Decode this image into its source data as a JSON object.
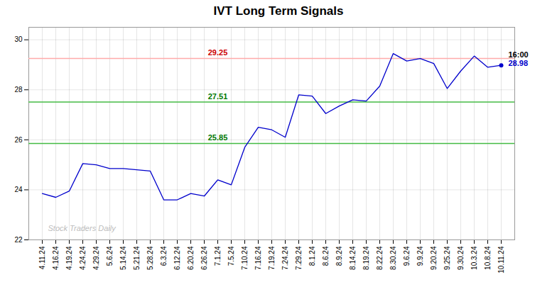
{
  "chart_data": {
    "type": "line",
    "title": "IVT Long Term Signals",
    "categories": [
      "4.11.24",
      "4.16.24",
      "4.19.24",
      "4.24.24",
      "4.29.24",
      "5.6.24",
      "5.14.24",
      "5.21.24",
      "5.28.24",
      "6.3.24",
      "6.12.24",
      "6.20.24",
      "6.26.24",
      "7.1.24",
      "7.5.24",
      "7.10.24",
      "7.16.24",
      "7.19.24",
      "7.24.24",
      "7.29.24",
      "8.1.24",
      "8.6.24",
      "8.9.24",
      "8.14.24",
      "8.19.24",
      "8.22.24",
      "8.30.24",
      "9.6.24",
      "9.9.24",
      "9.20.24",
      "9.25.24",
      "9.30.24",
      "10.3.24",
      "10.8.24",
      "10.11.24"
    ],
    "values": [
      23.85,
      23.7,
      23.95,
      25.05,
      25.0,
      24.85,
      24.85,
      24.8,
      24.75,
      23.6,
      23.6,
      23.85,
      23.75,
      24.4,
      24.2,
      25.7,
      26.5,
      26.4,
      26.1,
      27.8,
      27.75,
      27.05,
      27.35,
      27.6,
      27.55,
      28.15,
      29.45,
      29.15,
      29.25,
      29.05,
      28.05,
      28.75,
      29.35,
      28.9,
      28.98
    ],
    "color": "#0000cc",
    "ylim": [
      22,
      30.5
    ],
    "yticks": [
      22,
      24,
      26,
      28,
      30
    ],
    "grid": true,
    "hlines": [
      {
        "value": 29.25,
        "color": "#ffaaaa",
        "label": "29.25",
        "label_color": "#cc0000",
        "x": "7.1.24"
      },
      {
        "value": 25.85,
        "color": "#44bb44",
        "label": "25.85",
        "label_color": "#007700",
        "x": "7.1.24"
      },
      {
        "value": 27.51,
        "color": "#44bb44",
        "label": "27.51",
        "label_color": "#007700",
        "x": "7.1.24"
      }
    ],
    "annotations": [
      {
        "text": "16:00",
        "x": "10.11.24",
        "y": 28.98,
        "color": "#000000"
      },
      {
        "text": "28.98",
        "x": "10.11.24",
        "y": 28.98,
        "color": "#0000cc"
      }
    ],
    "watermark": {
      "text": "Stock Traders Daily",
      "x": "4.11.24",
      "y": 22.35,
      "color": "#aaaaaa"
    }
  }
}
